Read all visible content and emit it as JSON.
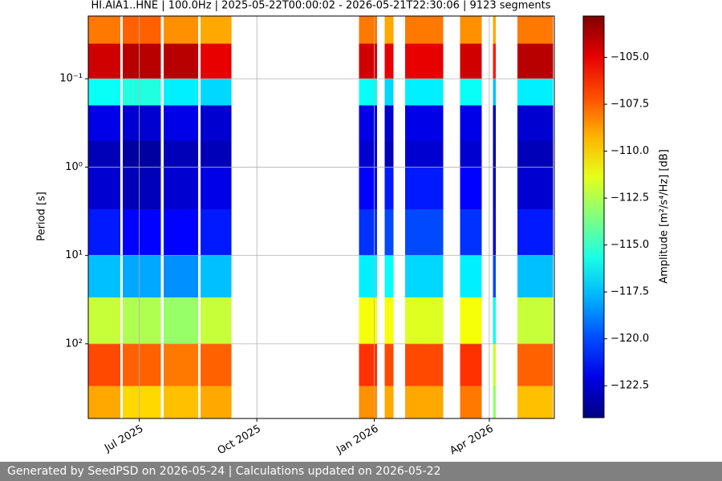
{
  "chart_data": {
    "type": "heatmap",
    "title": "HI.AIA1..HNE | 100.0Hz | 2025-05-22T00:00:02 - 2026-05-21T22:30:06 | 9123 segments",
    "ylabel": "Period [s]",
    "colorbar_label": "Amplitude [m²/s⁴/Hz] [dB]",
    "xlim": [
      "2025-05-22T00:00:02",
      "2026-05-21T22:30:06"
    ],
    "xticks": [
      {
        "value": "2025-07",
        "label": "Jul 2025"
      },
      {
        "value": "2025-10",
        "label": "Oct 2025"
      },
      {
        "value": "2026-01",
        "label": "Jan 2026"
      },
      {
        "value": "2026-04",
        "label": "Apr 2026"
      }
    ],
    "ylim": [
      0.0195,
      700
    ],
    "yscale": "log",
    "y_inverted": true,
    "yticks": [
      {
        "value": 0.1,
        "label": "10⁻¹"
      },
      {
        "value": 1,
        "label": "10⁰"
      },
      {
        "value": 10,
        "label": "10¹"
      },
      {
        "value": 100,
        "label": "10²"
      }
    ],
    "grid": true,
    "colormap": "jet",
    "clim": [
      -124.2,
      -102.8
    ],
    "cticks": [
      {
        "value": -105,
        "label": "−105.0"
      },
      {
        "value": -107.5,
        "label": "−107.5"
      },
      {
        "value": -110,
        "label": "−110.0"
      },
      {
        "value": -112.5,
        "label": "−112.5"
      },
      {
        "value": -115,
        "label": "−115.0"
      },
      {
        "value": -117.5,
        "label": "−117.5"
      },
      {
        "value": -120,
        "label": "−120.0"
      },
      {
        "value": -122.5,
        "label": "−122.5"
      }
    ],
    "y_bins": [
      0.0195,
      0.04,
      0.1,
      0.2,
      0.5,
      1,
      3,
      10,
      30,
      100,
      300,
      700
    ],
    "columns": [
      {
        "start": "2025-05-22",
        "end": "2025-06-16",
        "values": [
          -108,
          -104.5,
          -116,
          -122,
          -123,
          -122.5,
          -121,
          -117.5,
          -112,
          -107,
          -109
        ]
      },
      {
        "start": "2025-06-18",
        "end": "2025-07-18",
        "values": [
          -107.5,
          -104,
          -115.5,
          -122.5,
          -123.5,
          -123,
          -121.5,
          -118,
          -112.5,
          -107.5,
          -110
        ]
      },
      {
        "start": "2025-07-20",
        "end": "2025-08-16",
        "values": [
          -108.5,
          -104,
          -116.5,
          -122,
          -123,
          -122.5,
          -121.5,
          -118.5,
          -113,
          -108,
          -109.5
        ]
      },
      {
        "start": "2025-08-18",
        "end": "2025-09-11",
        "values": [
          -109,
          -105,
          -117,
          -122.5,
          -123,
          -122,
          -121,
          -117.5,
          -112,
          -107.5,
          -109
        ]
      },
      {
        "start": "2025-12-20",
        "end": "2026-01-03",
        "values": [
          -108,
          -104.5,
          -116,
          -122,
          -122.5,
          -121.5,
          -120.5,
          -116.5,
          -111,
          -106.5,
          -108.5
        ]
      },
      {
        "start": "2026-01-09",
        "end": "2026-01-16",
        "values": [
          -109,
          -105,
          -117,
          -122.5,
          -123,
          -121,
          -120,
          -116,
          -111,
          -107,
          -109
        ]
      },
      {
        "start": "2026-01-25",
        "end": "2026-02-24",
        "values": [
          -108,
          -105,
          -116.5,
          -122,
          -122.5,
          -121,
          -120,
          -117,
          -111.5,
          -107,
          -109
        ]
      },
      {
        "start": "2026-03-09",
        "end": "2026-03-26",
        "values": [
          -108.5,
          -104.5,
          -116,
          -122,
          -122.5,
          -121.5,
          -120.5,
          -116.5,
          -111,
          -106.5,
          -108
        ]
      },
      {
        "start": "2026-04-04",
        "end": "2026-04-06",
        "values": [
          -109,
          -106,
          -117.5,
          -123,
          -123.5,
          -123,
          -122.5,
          -120,
          -116,
          -112,
          -113
        ]
      },
      {
        "start": "2026-04-23",
        "end": "2026-05-21",
        "values": [
          -108,
          -104,
          -116.5,
          -122.5,
          -123,
          -122.5,
          -121,
          -117.5,
          -112,
          -107.5,
          -109.5
        ]
      }
    ]
  },
  "footer": "Generated by SeedPSD on 2026-05-24 | Calculations updated on 2026-05-22"
}
